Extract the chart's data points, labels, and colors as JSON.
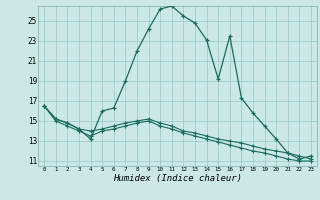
{
  "xlabel": "Humidex (Indice chaleur)",
  "xlim": [
    -0.5,
    23.5
  ],
  "ylim": [
    10.5,
    26.5
  ],
  "yticks": [
    11,
    13,
    15,
    17,
    19,
    21,
    23,
    25
  ],
  "xticks": [
    0,
    1,
    2,
    3,
    4,
    5,
    6,
    7,
    8,
    9,
    10,
    11,
    12,
    13,
    14,
    15,
    16,
    17,
    18,
    19,
    20,
    21,
    22,
    23
  ],
  "bg_color": "#cce8e4",
  "grid_color": "#9ecec8",
  "line_color": "#1a6b5a",
  "line1_x": [
    0,
    1,
    2,
    3,
    4,
    5,
    6,
    7,
    8,
    9,
    10,
    11,
    12,
    13,
    14,
    15,
    16,
    17,
    18,
    19,
    20,
    21,
    22,
    23
  ],
  "line1_y": [
    16.5,
    15.2,
    14.8,
    14.2,
    13.2,
    16.0,
    16.3,
    19.0,
    22.0,
    24.2,
    26.2,
    26.5,
    25.5,
    24.8,
    23.1,
    19.2,
    23.5,
    17.3,
    15.8,
    14.5,
    13.2,
    11.8,
    11.2,
    11.5
  ],
  "line2_x": [
    0,
    1,
    2,
    3,
    4,
    5,
    6,
    7,
    8,
    9,
    10,
    11,
    12,
    13,
    14,
    15,
    16,
    17,
    18,
    19,
    20,
    21,
    22,
    23
  ],
  "line2_y": [
    16.5,
    15.2,
    14.8,
    14.2,
    14.0,
    14.2,
    14.5,
    14.8,
    15.0,
    15.2,
    14.8,
    14.5,
    14.0,
    13.8,
    13.5,
    13.2,
    13.0,
    12.8,
    12.5,
    12.2,
    12.0,
    11.8,
    11.5,
    11.2
  ],
  "line3_x": [
    0,
    1,
    2,
    3,
    4,
    5,
    6,
    7,
    8,
    9,
    10,
    11,
    12,
    13,
    14,
    15,
    16,
    17,
    18,
    19,
    20,
    21,
    22,
    23
  ],
  "line3_y": [
    16.5,
    15.0,
    14.5,
    14.0,
    13.5,
    14.0,
    14.2,
    14.5,
    14.8,
    15.0,
    14.5,
    14.2,
    13.8,
    13.5,
    13.2,
    12.9,
    12.6,
    12.3,
    12.0,
    11.8,
    11.5,
    11.2,
    11.0,
    11.0
  ]
}
